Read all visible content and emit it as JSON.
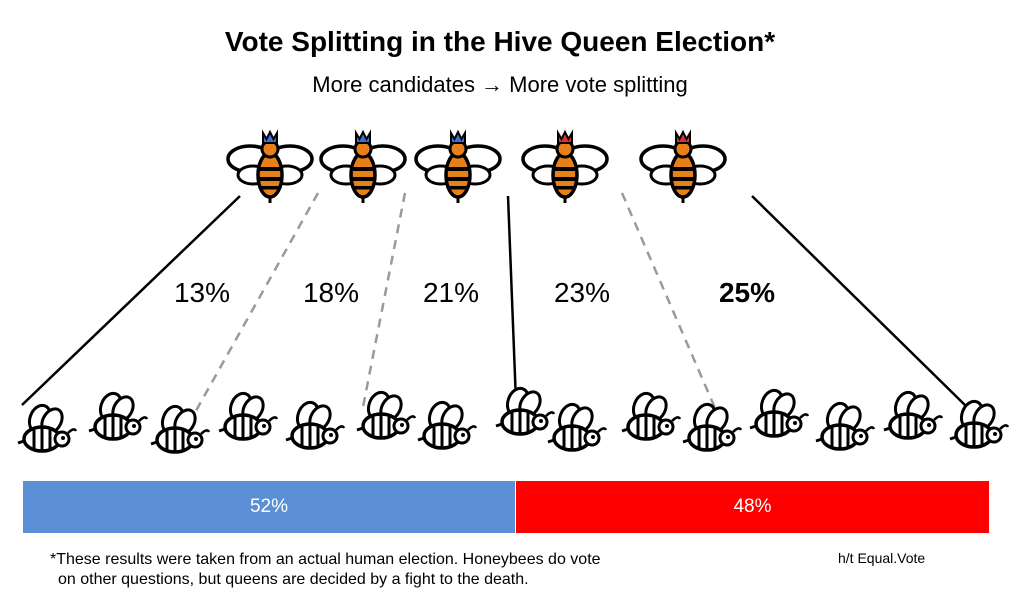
{
  "title": "Vote Splitting in the Hive Queen Election*",
  "subtitle": "More candidates → More vote splitting",
  "queens": [
    {
      "crown_color": "#3a6fd8",
      "share": "13%",
      "winner": false
    },
    {
      "crown_color": "#3a6fd8",
      "share": "18%",
      "winner": false
    },
    {
      "crown_color": "#3a6fd8",
      "share": "21%",
      "winner": false
    },
    {
      "crown_color": "#e03030",
      "share": "23%",
      "winner": false
    },
    {
      "crown_color": "#e03030",
      "share": "25%",
      "winner": true
    }
  ],
  "worker_bee_count": 15,
  "totals": {
    "blue": {
      "label": "52%",
      "fraction": 0.52,
      "color": "#5b8fd6"
    },
    "red": {
      "label": "48%",
      "fraction": 0.48,
      "color": "#ff0000"
    }
  },
  "footnote": {
    "line1": "*These results were taken from an actual human election. Honeybees do vote",
    "line2": "on other questions, but queens are decided by a fight to the death."
  },
  "credit": "h/t Equal.Vote"
}
